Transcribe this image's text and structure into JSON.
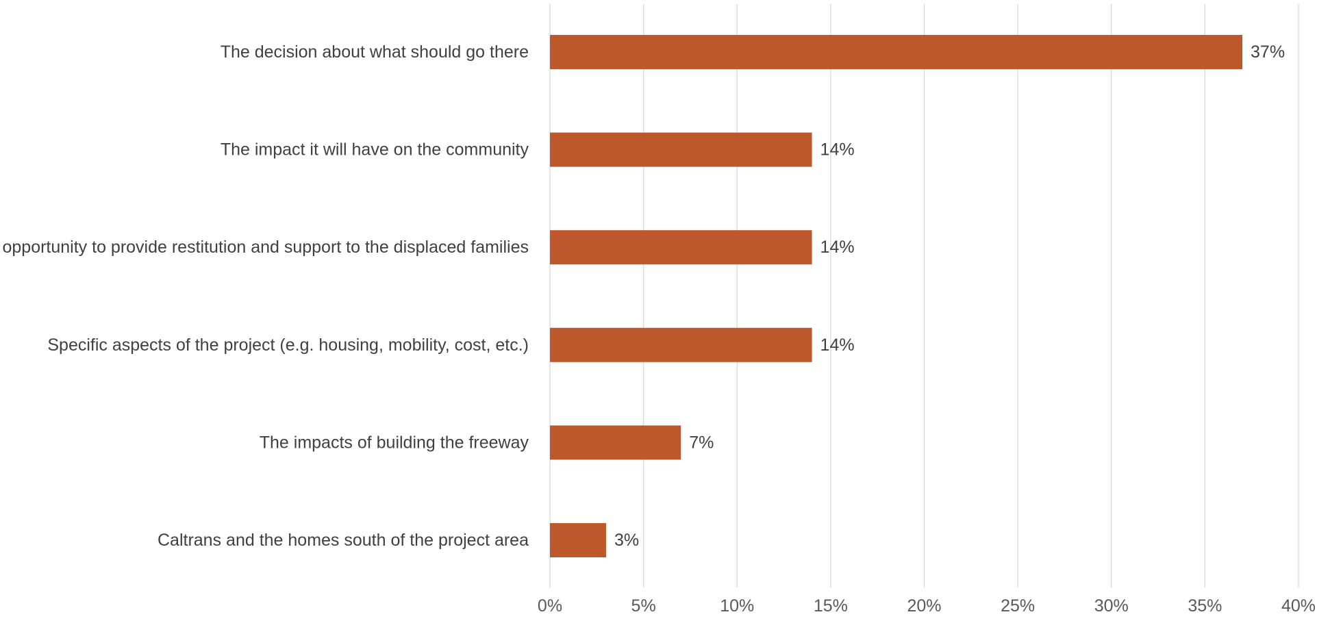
{
  "chart_data": {
    "type": "bar",
    "orientation": "horizontal",
    "categories": [
      "The decision about what should go there",
      "The impact it will have on the community",
      "opportunity to provide restitution and support to the displaced families",
      "Specific aspects of the project (e.g. housing, mobility, cost, etc.)",
      "The impacts of building the freeway",
      "Caltrans and the homes south of the project area"
    ],
    "values": [
      37,
      14,
      14,
      14,
      7,
      3
    ],
    "data_labels": [
      "37%",
      "14%",
      "14%",
      "14%",
      "7%",
      "3%"
    ],
    "x_ticks": [
      "0%",
      "5%",
      "10%",
      "15%",
      "20%",
      "25%",
      "30%",
      "35%",
      "40%"
    ],
    "xlim": [
      0,
      40
    ],
    "x_tick_step": 5,
    "grid": true,
    "legend": "none",
    "bar_color": "#BD582C",
    "grid_color": "#D9D9D9"
  }
}
